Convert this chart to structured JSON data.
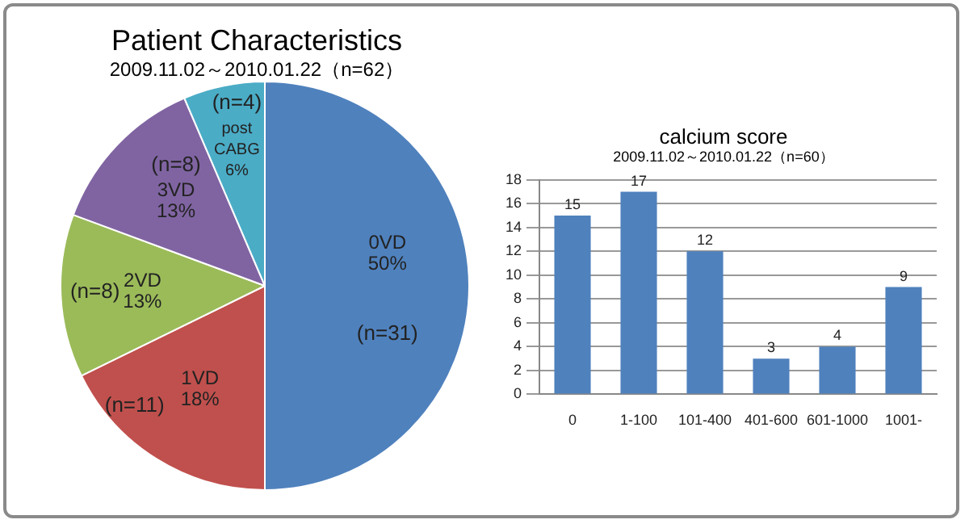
{
  "chart_data": [
    {
      "type": "pie",
      "title": "Patient Characteristics",
      "subtitle": "2009.11.02～2010.01.22（n=62）",
      "categories": [
        "0VD",
        "1VD",
        "2VD",
        "3VD",
        "post CABG"
      ],
      "values": [
        31,
        11,
        8,
        8,
        4
      ],
      "value_labels": [
        "(n=31)",
        "(n=11)",
        "(n=8)",
        "(n=8)",
        "(n=4)"
      ],
      "annotations": [
        {
          "text": "50%",
          "x": "0VD"
        },
        {
          "text": "18%",
          "x": "1VD"
        },
        {
          "text": "13%",
          "x": "2VD"
        },
        {
          "text": "13%",
          "x": "3VD"
        },
        {
          "text": "6%",
          "x": "post CABG"
        }
      ],
      "colors": [
        "#4f81bd",
        "#c0504d",
        "#9bbb59",
        "#8064a2",
        "#4bacc6"
      ],
      "legend": false
    },
    {
      "type": "bar",
      "title": "calcium score",
      "subtitle": "2009.11.02～2010.01.22（n=60）",
      "categories": [
        "0",
        "1-100",
        "101-400",
        "401-600",
        "601-1000",
        "1001-"
      ],
      "values": [
        15,
        17,
        12,
        3,
        4,
        9
      ],
      "color": "#4f81bd",
      "ylim": [
        0,
        18
      ],
      "yticks": [
        0,
        2,
        4,
        6,
        8,
        10,
        12,
        14,
        16,
        18
      ],
      "grid": "y",
      "data_labels": true,
      "legend": false
    }
  ]
}
